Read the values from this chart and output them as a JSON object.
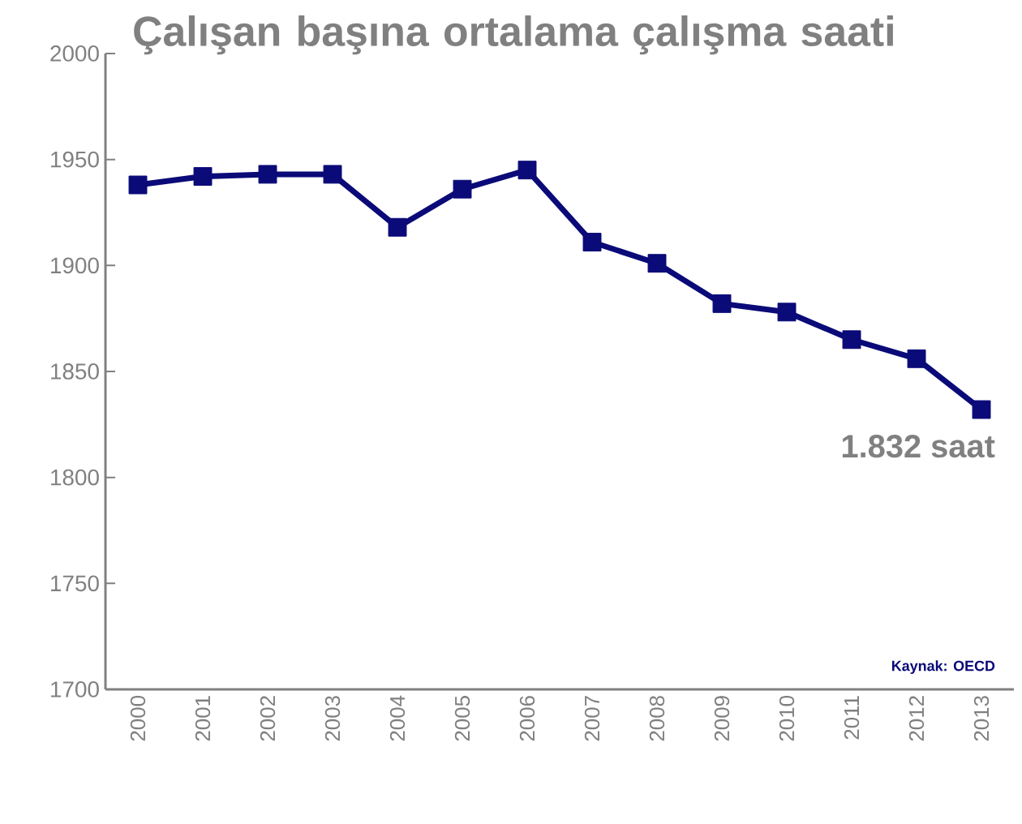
{
  "chart_data": {
    "type": "line",
    "title": "Çalışan başına ortalama çalışma saati",
    "categories": [
      "2000",
      "2001",
      "2002",
      "2003",
      "2004",
      "2005",
      "2006",
      "2007",
      "2008",
      "2009",
      "2010",
      "2011",
      "2012",
      "2013"
    ],
    "series": [
      {
        "color": "#0a0a78",
        "values": [
          1938,
          1942,
          1943,
          1943,
          1918,
          1936,
          1945,
          1911,
          1901,
          1882,
          1878,
          1865,
          1856,
          1832
        ]
      }
    ],
    "ylim": [
      1700,
      2000
    ],
    "yticks": [
      1700,
      1750,
      1800,
      1850,
      1900,
      1950,
      2000
    ],
    "marker": "square",
    "grid": false,
    "annotations": [
      {
        "text": "1.832 saat",
        "x": "2013",
        "y": 1832
      },
      "Kaynak: OECD"
    ]
  }
}
